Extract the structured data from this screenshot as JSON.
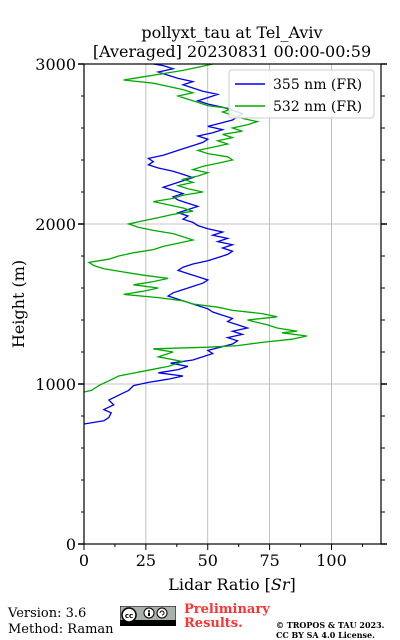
{
  "chart_data": {
    "type": "line",
    "title_line1": "pollyxt_tau at Tel_Aviv",
    "title_line2": "[Averaged] 20230831 00:00-00:59",
    "xlabel": "Lidar Ratio [",
    "xlabel_unit": "Sr",
    "xlabel_end": "]",
    "ylabel": "Height (m)",
    "xlim": [
      0,
      120
    ],
    "ylim": [
      0,
      3000
    ],
    "xticks": [
      "0",
      "25",
      "50",
      "75",
      "100"
    ],
    "yticks": [
      "0",
      "1000",
      "2000",
      "3000"
    ],
    "grid": true,
    "legend_position": "top-right",
    "series": [
      {
        "name": "355 nm (FR)",
        "color": "#0000ee",
        "points": [
          [
            0,
            750
          ],
          [
            8,
            770
          ],
          [
            10,
            790
          ],
          [
            11,
            820
          ],
          [
            8,
            840
          ],
          [
            12,
            870
          ],
          [
            10,
            900
          ],
          [
            14,
            930
          ],
          [
            18,
            960
          ],
          [
            20,
            990
          ],
          [
            26,
            1010
          ],
          [
            34,
            1030
          ],
          [
            40,
            1050
          ],
          [
            30,
            1070
          ],
          [
            38,
            1090
          ],
          [
            42,
            1110
          ],
          [
            35,
            1130
          ],
          [
            44,
            1150
          ],
          [
            48,
            1170
          ],
          [
            52,
            1190
          ],
          [
            50,
            1210
          ],
          [
            55,
            1230
          ],
          [
            60,
            1250
          ],
          [
            62,
            1270
          ],
          [
            58,
            1290
          ],
          [
            64,
            1310
          ],
          [
            60,
            1330
          ],
          [
            66,
            1350
          ],
          [
            62,
            1370
          ],
          [
            58,
            1390
          ],
          [
            60,
            1410
          ],
          [
            56,
            1430
          ],
          [
            52,
            1450
          ],
          [
            50,
            1470
          ],
          [
            46,
            1490
          ],
          [
            42,
            1510
          ],
          [
            38,
            1530
          ],
          [
            34,
            1550
          ],
          [
            36,
            1570
          ],
          [
            40,
            1590
          ],
          [
            44,
            1610
          ],
          [
            48,
            1630
          ],
          [
            50,
            1650
          ],
          [
            46,
            1670
          ],
          [
            42,
            1690
          ],
          [
            38,
            1710
          ],
          [
            40,
            1730
          ],
          [
            44,
            1750
          ],
          [
            50,
            1770
          ],
          [
            54,
            1790
          ],
          [
            58,
            1810
          ],
          [
            60,
            1830
          ],
          [
            56,
            1850
          ],
          [
            60,
            1870
          ],
          [
            54,
            1890
          ],
          [
            58,
            1910
          ],
          [
            52,
            1930
          ],
          [
            56,
            1950
          ],
          [
            50,
            1970
          ],
          [
            46,
            1990
          ],
          [
            44,
            2010
          ],
          [
            40,
            2030
          ],
          [
            42,
            2050
          ],
          [
            38,
            2070
          ],
          [
            42,
            2090
          ],
          [
            46,
            2110
          ],
          [
            42,
            2130
          ],
          [
            38,
            2150
          ],
          [
            36,
            2170
          ],
          [
            40,
            2190
          ],
          [
            36,
            2210
          ],
          [
            32,
            2230
          ],
          [
            36,
            2250
          ],
          [
            40,
            2270
          ],
          [
            44,
            2290
          ],
          [
            40,
            2310
          ],
          [
            36,
            2330
          ],
          [
            30,
            2350
          ],
          [
            26,
            2370
          ],
          [
            28,
            2390
          ],
          [
            26,
            2410
          ],
          [
            32,
            2430
          ],
          [
            36,
            2450
          ],
          [
            40,
            2470
          ],
          [
            44,
            2490
          ],
          [
            48,
            2510
          ],
          [
            50,
            2530
          ],
          [
            46,
            2550
          ],
          [
            52,
            2570
          ],
          [
            56,
            2590
          ],
          [
            50,
            2610
          ],
          [
            55,
            2630
          ],
          [
            60,
            2650
          ],
          [
            62,
            2670
          ],
          [
            64,
            2690
          ],
          [
            60,
            2710
          ],
          [
            56,
            2730
          ],
          [
            50,
            2750
          ],
          [
            46,
            2770
          ],
          [
            50,
            2790
          ],
          [
            54,
            2810
          ],
          [
            48,
            2830
          ],
          [
            44,
            2850
          ],
          [
            40,
            2870
          ],
          [
            44,
            2890
          ],
          [
            38,
            2910
          ],
          [
            34,
            2930
          ],
          [
            30,
            2950
          ],
          [
            36,
            2970
          ],
          [
            32,
            2990
          ],
          [
            28,
            3000
          ]
        ]
      },
      {
        "name": "532 nm (FR)",
        "color": "#00aa00",
        "points": [
          [
            0,
            950
          ],
          [
            3,
            960
          ],
          [
            6,
            990
          ],
          [
            10,
            1020
          ],
          [
            14,
            1050
          ],
          [
            24,
            1080
          ],
          [
            34,
            1110
          ],
          [
            40,
            1140
          ],
          [
            30,
            1170
          ],
          [
            36,
            1200
          ],
          [
            28,
            1220
          ],
          [
            50,
            1230
          ],
          [
            62,
            1240
          ],
          [
            72,
            1260
          ],
          [
            84,
            1280
          ],
          [
            90,
            1300
          ],
          [
            80,
            1320
          ],
          [
            86,
            1330
          ],
          [
            78,
            1350
          ],
          [
            74,
            1370
          ],
          [
            66,
            1400
          ],
          [
            78,
            1420
          ],
          [
            72,
            1440
          ],
          [
            60,
            1460
          ],
          [
            54,
            1480
          ],
          [
            44,
            1500
          ],
          [
            40,
            1520
          ],
          [
            30,
            1540
          ],
          [
            16,
            1560
          ],
          [
            24,
            1580
          ],
          [
            30,
            1600
          ],
          [
            20,
            1620
          ],
          [
            28,
            1640
          ],
          [
            34,
            1660
          ],
          [
            24,
            1680
          ],
          [
            16,
            1700
          ],
          [
            8,
            1720
          ],
          [
            4,
            1740
          ],
          [
            2,
            1760
          ],
          [
            10,
            1780
          ],
          [
            14,
            1800
          ],
          [
            20,
            1820
          ],
          [
            28,
            1840
          ],
          [
            32,
            1860
          ],
          [
            38,
            1880
          ],
          [
            44,
            1900
          ],
          [
            40,
            1920
          ],
          [
            36,
            1940
          ],
          [
            28,
            1960
          ],
          [
            22,
            1980
          ],
          [
            18,
            2000
          ],
          [
            24,
            2020
          ],
          [
            30,
            2040
          ],
          [
            36,
            2060
          ],
          [
            44,
            2080
          ],
          [
            40,
            2100
          ],
          [
            34,
            2120
          ],
          [
            28,
            2140
          ],
          [
            36,
            2160
          ],
          [
            40,
            2180
          ],
          [
            48,
            2200
          ],
          [
            42,
            2220
          ],
          [
            38,
            2240
          ],
          [
            44,
            2260
          ],
          [
            40,
            2280
          ],
          [
            46,
            2300
          ],
          [
            50,
            2320
          ],
          [
            44,
            2340
          ],
          [
            48,
            2360
          ],
          [
            54,
            2380
          ],
          [
            60,
            2400
          ],
          [
            58,
            2420
          ],
          [
            50,
            2440
          ],
          [
            46,
            2460
          ],
          [
            52,
            2480
          ],
          [
            58,
            2500
          ],
          [
            54,
            2520
          ],
          [
            60,
            2540
          ],
          [
            56,
            2560
          ],
          [
            64,
            2580
          ],
          [
            60,
            2600
          ],
          [
            66,
            2620
          ],
          [
            70,
            2640
          ],
          [
            64,
            2660
          ],
          [
            60,
            2680
          ],
          [
            56,
            2700
          ],
          [
            60,
            2720
          ],
          [
            50,
            2740
          ],
          [
            46,
            2760
          ],
          [
            42,
            2780
          ],
          [
            38,
            2800
          ],
          [
            44,
            2820
          ],
          [
            40,
            2840
          ],
          [
            34,
            2860
          ],
          [
            28,
            2880
          ],
          [
            16,
            2900
          ],
          [
            24,
            2920
          ],
          [
            32,
            2940
          ],
          [
            40,
            2960
          ],
          [
            46,
            2980
          ],
          [
            52,
            3000
          ]
        ]
      }
    ]
  },
  "footer": {
    "version": "Version: 3.6",
    "method": "Method: Raman",
    "prelim_line1": "Preliminary",
    "prelim_line2": "Results.",
    "copyright_line1": "© TROPOS & TAU 2023.",
    "copyright_line2": "CC BY SA 4.0 License.",
    "badge": "cc-by-sa-icon"
  }
}
